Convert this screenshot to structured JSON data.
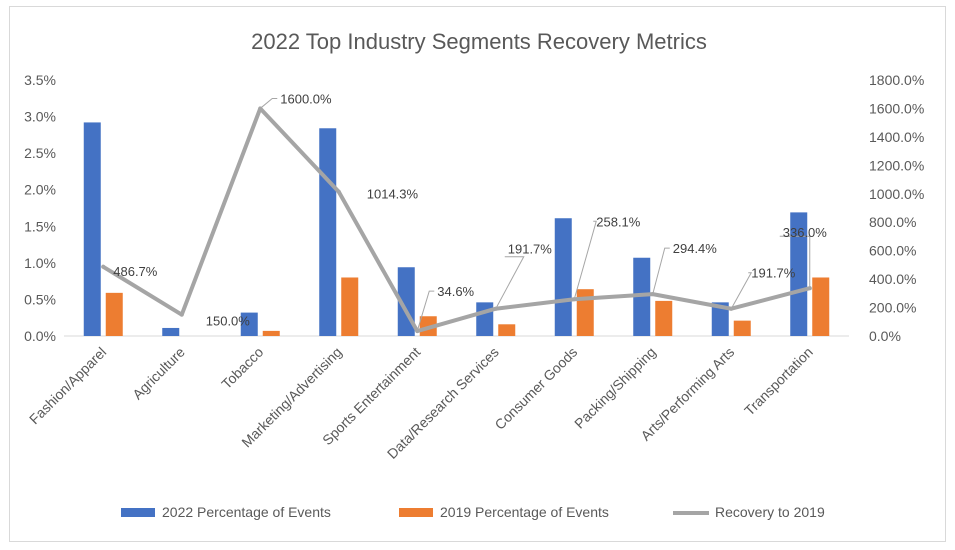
{
  "chart_data": {
    "type": "bar",
    "title": "2022 Top Industry Segments Recovery Metrics",
    "categories": [
      "Fashion/Apparel",
      "Agriculture",
      "Tobacco",
      "Marketing/Advertising",
      "Sports Entertainment",
      "Data/Research Services",
      "Consumer Goods",
      "Packing/Shipping",
      "Arts/Performing Arts",
      "Transportation"
    ],
    "series": [
      {
        "name": "2022 Percentage of Events",
        "type": "bar",
        "axis": "left",
        "color": "#4472C4",
        "values": [
          2.92,
          0.11,
          0.32,
          2.84,
          0.94,
          0.46,
          1.61,
          1.07,
          0.46,
          1.69
        ]
      },
      {
        "name": "2019 Percentage of Events",
        "type": "bar",
        "axis": "left",
        "color": "#ED7D31",
        "values": [
          0.59,
          0.0,
          0.07,
          0.8,
          0.27,
          0.16,
          0.64,
          0.48,
          0.21,
          0.8
        ]
      },
      {
        "name": "Recovery to 2019",
        "type": "line",
        "axis": "right",
        "color": "#A5A5A5",
        "values": [
          486.7,
          150.0,
          1600.0,
          1014.3,
          34.6,
          191.7,
          258.1,
          294.4,
          191.7,
          336.0
        ],
        "labels": [
          "486.7%",
          "150.0%",
          "1600.0%",
          "1014.3%",
          "34.6%",
          "191.7%",
          "258.1%",
          "294.4%",
          "191.7%",
          "336.0%"
        ]
      }
    ],
    "y_left": {
      "min": 0,
      "max": 3.5,
      "ticks": [
        "0.0%",
        "0.5%",
        "1.0%",
        "1.5%",
        "2.0%",
        "2.5%",
        "3.0%",
        "3.5%"
      ]
    },
    "y_right": {
      "min": 0,
      "max": 1800,
      "ticks": [
        "0.0%",
        "200.0%",
        "400.0%",
        "600.0%",
        "800.0%",
        "1000.0%",
        "1200.0%",
        "1400.0%",
        "1600.0%",
        "1800.0%"
      ]
    },
    "grid": false,
    "legend": "bottom"
  }
}
